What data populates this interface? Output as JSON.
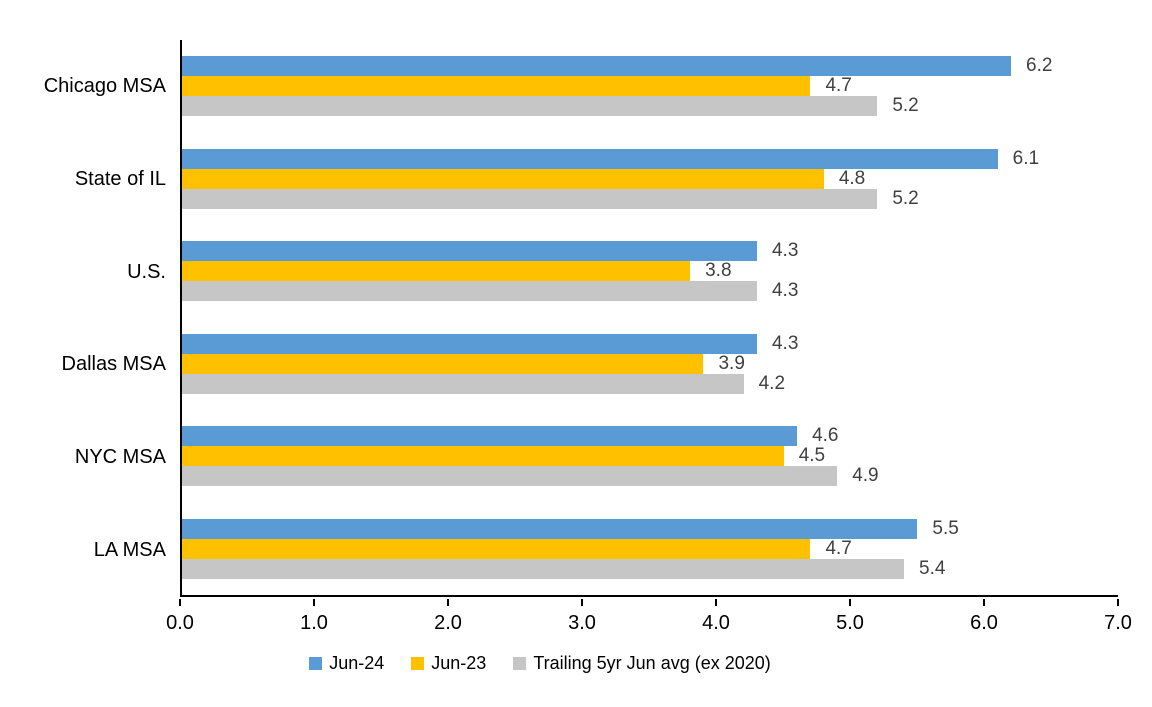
{
  "chart_data": {
    "type": "bar",
    "orientation": "horizontal",
    "title": "",
    "xlabel": "",
    "ylabel": "",
    "grid": false,
    "legend_position": "bottom",
    "xlim": [
      0.0,
      7.0
    ],
    "x_ticks": [
      "0.0",
      "1.0",
      "2.0",
      "3.0",
      "4.0",
      "5.0",
      "6.0",
      "7.0"
    ],
    "categories": [
      "Chicago MSA",
      "State of IL",
      "U.S.",
      "Dallas MSA",
      "NYC MSA",
      "LA MSA"
    ],
    "series": [
      {
        "name": "Jun-24",
        "color": "#5B9BD5",
        "values": [
          6.2,
          6.1,
          4.3,
          4.3,
          4.6,
          5.5
        ]
      },
      {
        "name": "Jun-23",
        "color": "#FFC000",
        "values": [
          4.7,
          4.8,
          3.8,
          3.9,
          4.5,
          4.7
        ]
      },
      {
        "name": "Trailing 5yr Jun avg (ex 2020)",
        "color": "#C6C6C6",
        "values": [
          5.2,
          5.2,
          4.3,
          4.2,
          4.9,
          5.4
        ]
      }
    ]
  },
  "colors": {
    "background": "#FFFFFF",
    "axis": "#000000",
    "category_label": "#000000",
    "value_label": "#404040",
    "tick_label": "#000000",
    "legend_text": "#000000"
  }
}
